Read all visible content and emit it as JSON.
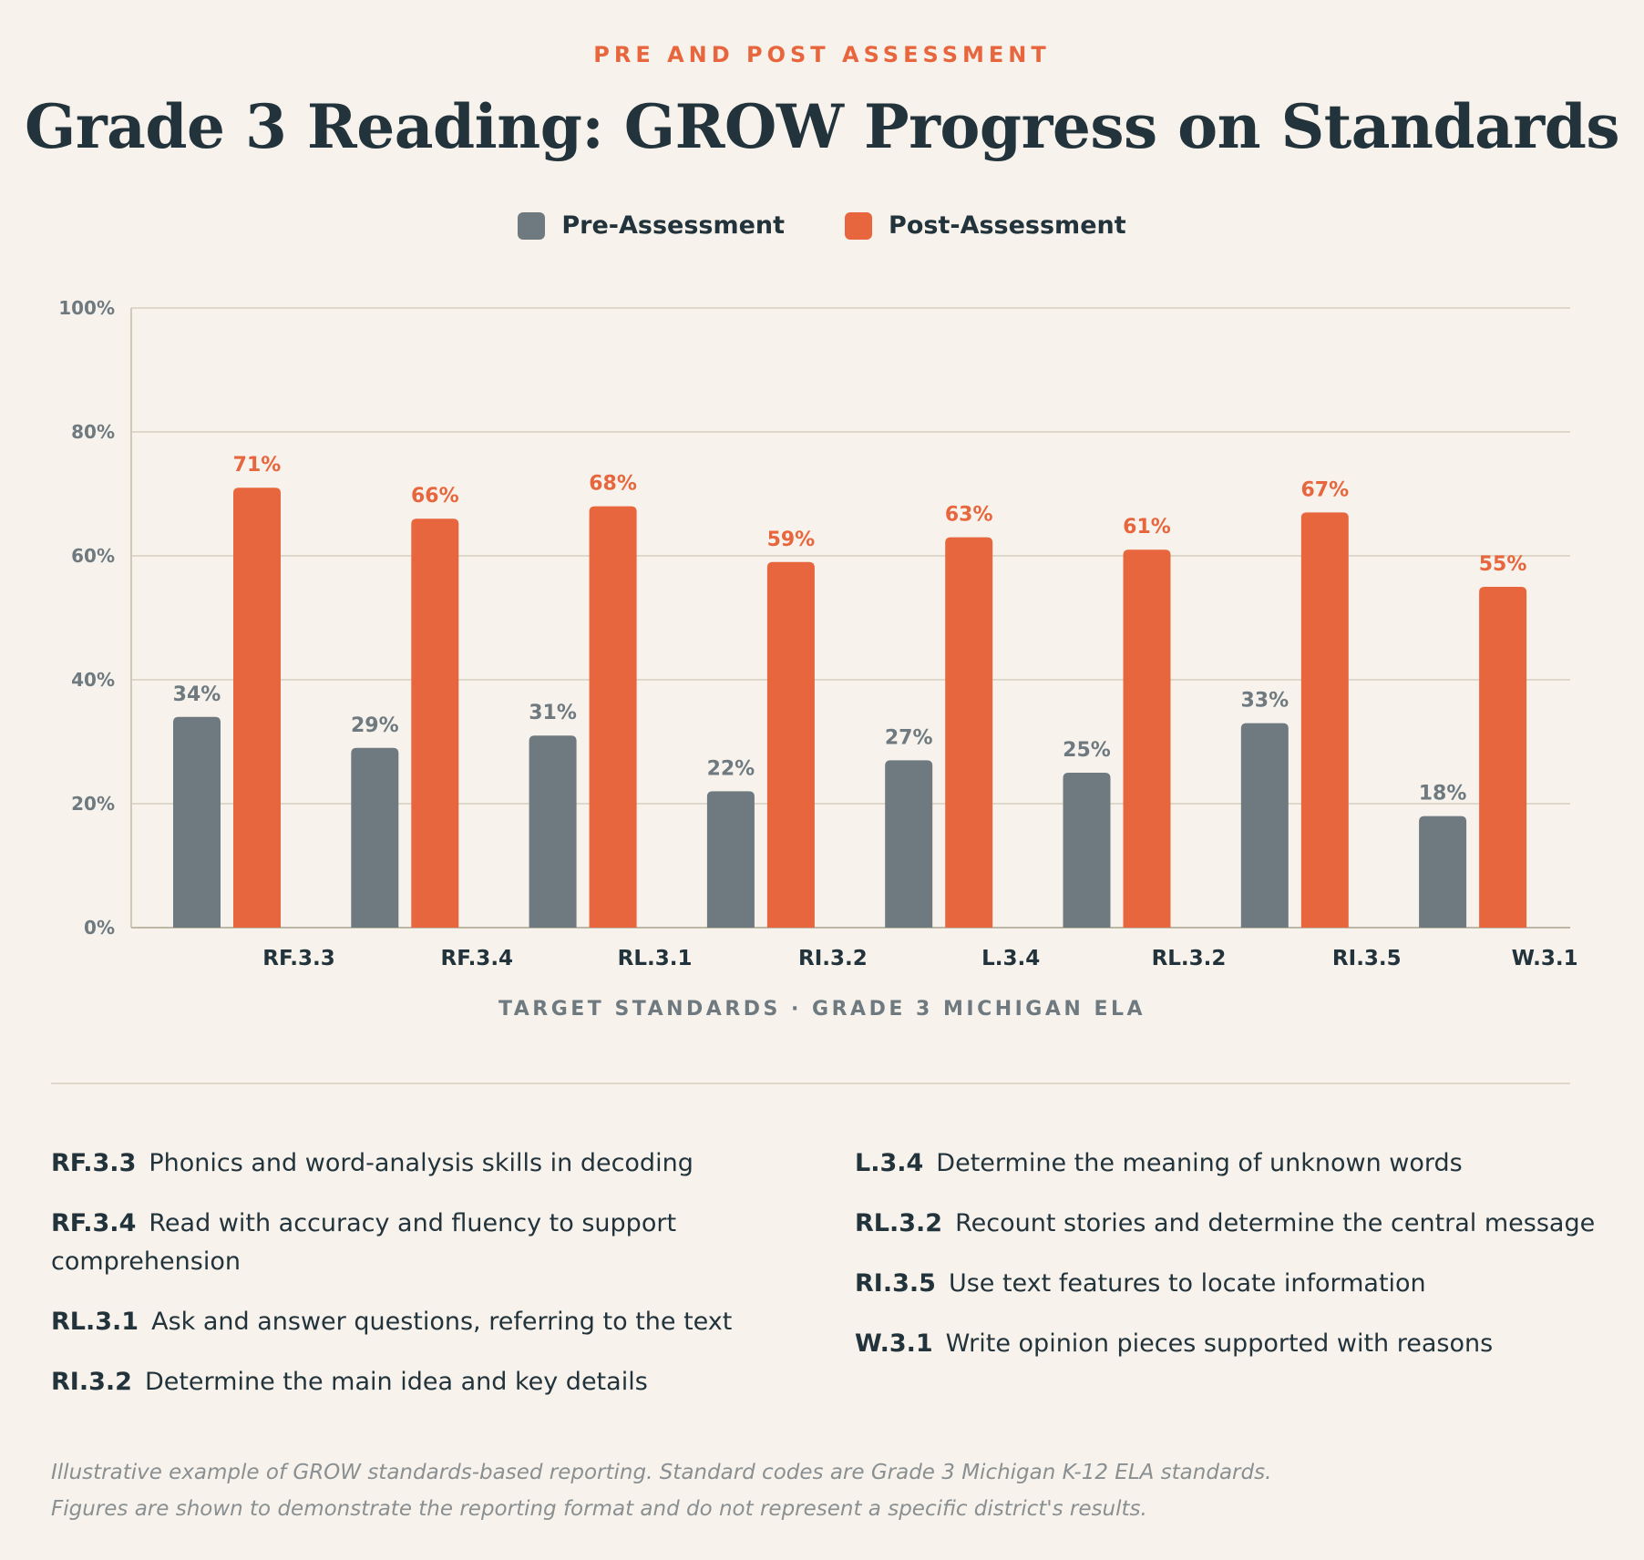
{
  "header": {
    "eyebrow": "PRE AND POST ASSESSMENT",
    "title": "Grade 3 Reading: GROW Progress on Standards"
  },
  "legend": {
    "pre_label": "Pre-Assessment",
    "post_label": "Post-Assessment",
    "pre_color": "#6f7a80",
    "post_color": "#e8663d"
  },
  "chart_data": {
    "type": "bar",
    "title": "Grade 3 Reading: GROW Progress on Standards",
    "xlabel": "TARGET STANDARDS · GRADE 3 MICHIGAN ELA",
    "ylabel": "",
    "ylim": [
      0,
      100
    ],
    "y_ticks": [
      0,
      20,
      40,
      60,
      80,
      100
    ],
    "y_tick_suffix": "%",
    "grid": true,
    "legend_position": "top-center",
    "categories": [
      "RF.3.3",
      "RF.3.4",
      "RL.3.1",
      "RI.3.2",
      "L.3.4",
      "RL.3.2",
      "RI.3.5",
      "W.3.1"
    ],
    "series": [
      {
        "name": "Pre-Assessment",
        "color": "#6f7a80",
        "values": [
          34,
          29,
          31,
          22,
          27,
          25,
          33,
          18
        ]
      },
      {
        "name": "Post-Assessment",
        "color": "#e8663d",
        "values": [
          71,
          66,
          68,
          59,
          63,
          61,
          67,
          55
        ]
      }
    ]
  },
  "standards": {
    "left": [
      {
        "code": "RF.3.3",
        "desc": "Phonics and word-analysis skills in decoding"
      },
      {
        "code": "RF.3.4",
        "desc": "Read with accuracy and fluency to support comprehension"
      },
      {
        "code": "RL.3.1",
        "desc": "Ask and answer questions, referring to the text"
      },
      {
        "code": "RI.3.2",
        "desc": "Determine the main idea and key details"
      }
    ],
    "right": [
      {
        "code": "L.3.4",
        "desc": "Determine the meaning of unknown words"
      },
      {
        "code": "RL.3.2",
        "desc": "Recount stories and determine the central message"
      },
      {
        "code": "RI.3.5",
        "desc": "Use text features to locate information"
      },
      {
        "code": "W.3.1",
        "desc": "Write opinion pieces supported with reasons"
      }
    ]
  },
  "footnote": {
    "line1": "Illustrative example of GROW standards-based reporting. Standard codes are Grade 3 Michigan K-12 ELA standards.",
    "line2": "Figures are shown to demonstrate the reporting format and do not represent a specific district's results."
  }
}
